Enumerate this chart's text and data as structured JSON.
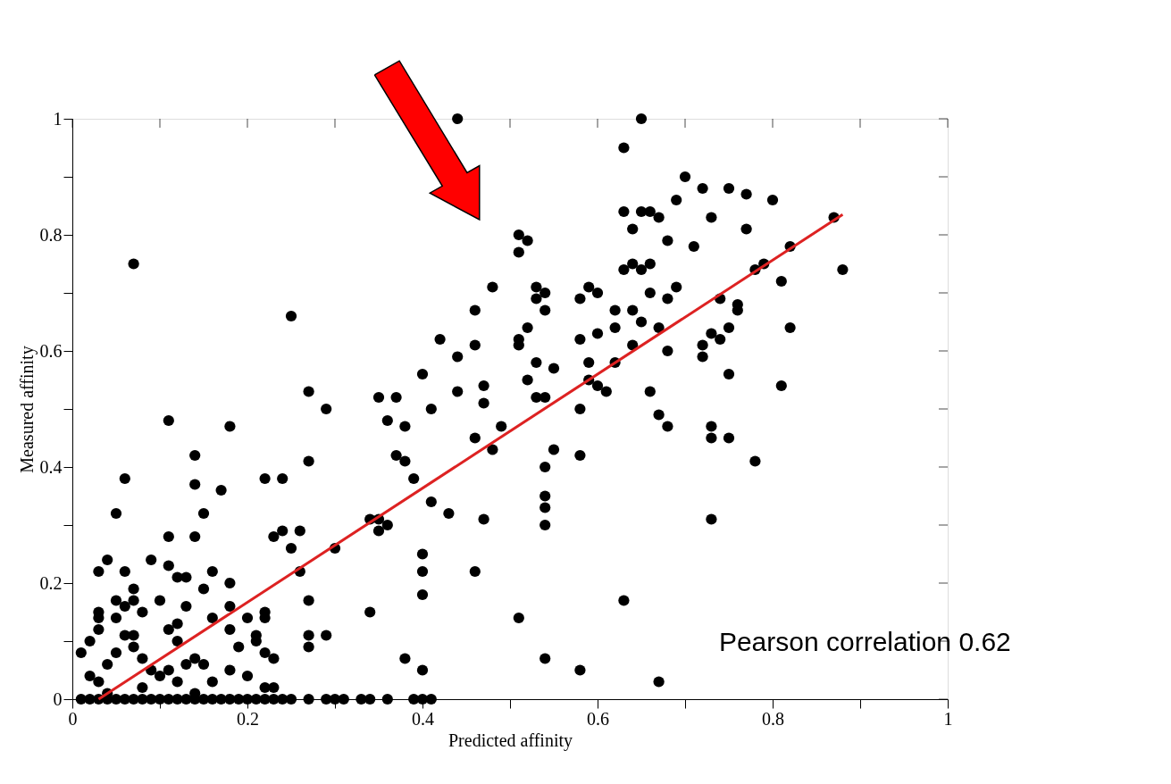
{
  "chart_data": {
    "type": "scatter",
    "xlabel": "Predicted affinity",
    "ylabel": "Measured affinity",
    "xlim": [
      0,
      1
    ],
    "ylim": [
      0,
      1
    ],
    "xticks": [
      0,
      {
        "value": 0.1,
        "label": null
      },
      0.2,
      {
        "value": 0.3,
        "label": null
      },
      0.4,
      {
        "value": 0.5,
        "label": null
      },
      0.6,
      {
        "value": 0.7,
        "label": null
      },
      0.8,
      {
        "value": 0.9,
        "label": null
      },
      1
    ],
    "yticks": [
      0,
      {
        "value": 0.1,
        "label": null
      },
      0.2,
      {
        "value": 0.3,
        "label": null
      },
      0.4,
      {
        "value": 0.5,
        "label": null
      },
      0.6,
      {
        "value": 0.7,
        "label": null
      },
      0.8,
      {
        "value": 0.9,
        "label": null
      },
      1
    ],
    "grid": false,
    "marker": "circle",
    "annotations": [
      "Pearson correlation 0.62"
    ],
    "series": [
      {
        "type": "scatter",
        "color": "#000000",
        "x": [
          0.44,
          0.65,
          0.63,
          0.7,
          0.72,
          0.75,
          0.77,
          0.8,
          0.69,
          0.73,
          0.63,
          0.65,
          0.66,
          0.67,
          0.87,
          0.64,
          0.77,
          0.68,
          0.71,
          0.82,
          0.51,
          0.52,
          0.51,
          0.63,
          0.65,
          0.66,
          0.64,
          0.79,
          0.78,
          0.88,
          0.81,
          0.59,
          0.48,
          0.53,
          0.54,
          0.58,
          0.6,
          0.69,
          0.74,
          0.68,
          0.76,
          0.53,
          0.46,
          0.54,
          0.66,
          0.62,
          0.64,
          0.65,
          0.67,
          0.75,
          0.73,
          0.74,
          0.82,
          0.51,
          0.51,
          0.52,
          0.58,
          0.6,
          0.62,
          0.42,
          0.46,
          0.72,
          0.72,
          0.76,
          0.62,
          0.64,
          0.68,
          0.53,
          0.55,
          0.59,
          0.44,
          0.52,
          0.59,
          0.6,
          0.61,
          0.75,
          0.81,
          0.53,
          0.54,
          0.47,
          0.47,
          0.4,
          0.41,
          0.44,
          0.35,
          0.37,
          0.36,
          0.38,
          0.46,
          0.49,
          0.58,
          0.66,
          0.67,
          0.68,
          0.73,
          0.73,
          0.75,
          0.78,
          0.48,
          0.55,
          0.58,
          0.37,
          0.38,
          0.39,
          0.54,
          0.54,
          0.54,
          0.41,
          0.43,
          0.47,
          0.54,
          0.73,
          0.35,
          0.36,
          0.35,
          0.34,
          0.4,
          0.4,
          0.46,
          0.4,
          0.34,
          0.51,
          0.63,
          0.38,
          0.4,
          0.54,
          0.58,
          0.67,
          0.07,
          0.25,
          0.06,
          0.11,
          0.18,
          0.14,
          0.27,
          0.24,
          0.22,
          0.27,
          0.29,
          0.14,
          0.17,
          0.15,
          0.05,
          0.14,
          0.11,
          0.24,
          0.26,
          0.23,
          0.3,
          0.25,
          0.04,
          0.06,
          0.09,
          0.03,
          0.11,
          0.12,
          0.13,
          0.16,
          0.15,
          0.18,
          0.26,
          0.22,
          0.2,
          0.21,
          0.18,
          0.07,
          0.05,
          0.07,
          0.06,
          0.1,
          0.08,
          0.03,
          0.03,
          0.03,
          0.05,
          0.06,
          0.02,
          0.01,
          0.04,
          0.05,
          0.07,
          0.08,
          0.07,
          0.11,
          0.12,
          0.13,
          0.16,
          0.12,
          0.13,
          0.14,
          0.11,
          0.15,
          0.18,
          0.18,
          0.21,
          0.19,
          0.2,
          0.22,
          0.23,
          0.22,
          0.27,
          0.27,
          0.27,
          0.29,
          0.23,
          0.02,
          0.03,
          0.04,
          0.09,
          0.08,
          0.1,
          0.12,
          0.14,
          0.16,
          0.22,
          0.01,
          0.02,
          0.03,
          0.04,
          0.05,
          0.06,
          0.07,
          0.08,
          0.09,
          0.1,
          0.11,
          0.12,
          0.13,
          0.14,
          0.15,
          0.16,
          0.17,
          0.18,
          0.19,
          0.2,
          0.21,
          0.22,
          0.23,
          0.24,
          0.25,
          0.27,
          0.29,
          0.3,
          0.31,
          0.33,
          0.34,
          0.36,
          0.39,
          0.4,
          0.41
        ],
        "values": [
          1.0,
          1.0,
          0.95,
          0.9,
          0.88,
          0.88,
          0.87,
          0.86,
          0.86,
          0.83,
          0.84,
          0.84,
          0.84,
          0.83,
          0.83,
          0.81,
          0.81,
          0.79,
          0.78,
          0.78,
          0.8,
          0.79,
          0.77,
          0.74,
          0.74,
          0.75,
          0.75,
          0.75,
          0.74,
          0.74,
          0.72,
          0.71,
          0.71,
          0.71,
          0.7,
          0.69,
          0.7,
          0.71,
          0.69,
          0.69,
          0.68,
          0.69,
          0.67,
          0.67,
          0.7,
          0.67,
          0.67,
          0.65,
          0.64,
          0.64,
          0.63,
          0.62,
          0.64,
          0.62,
          0.61,
          0.64,
          0.62,
          0.63,
          0.64,
          0.62,
          0.61,
          0.61,
          0.59,
          0.67,
          0.58,
          0.61,
          0.6,
          0.58,
          0.57,
          0.58,
          0.59,
          0.55,
          0.55,
          0.54,
          0.53,
          0.56,
          0.54,
          0.52,
          0.52,
          0.54,
          0.51,
          0.56,
          0.5,
          0.53,
          0.52,
          0.52,
          0.48,
          0.47,
          0.45,
          0.47,
          0.5,
          0.53,
          0.49,
          0.47,
          0.47,
          0.45,
          0.45,
          0.41,
          0.43,
          0.43,
          0.42,
          0.42,
          0.41,
          0.38,
          0.4,
          0.35,
          0.33,
          0.34,
          0.32,
          0.31,
          0.3,
          0.31,
          0.31,
          0.3,
          0.29,
          0.31,
          0.25,
          0.22,
          0.22,
          0.18,
          0.15,
          0.14,
          0.17,
          0.07,
          0.05,
          0.07,
          0.05,
          0.03,
          0.75,
          0.66,
          0.38,
          0.48,
          0.47,
          0.42,
          0.41,
          0.38,
          0.38,
          0.53,
          0.5,
          0.37,
          0.36,
          0.32,
          0.32,
          0.28,
          0.28,
          0.29,
          0.29,
          0.28,
          0.26,
          0.26,
          0.24,
          0.22,
          0.24,
          0.22,
          0.23,
          0.21,
          0.21,
          0.22,
          0.19,
          0.2,
          0.22,
          0.15,
          0.14,
          0.11,
          0.16,
          0.17,
          0.17,
          0.19,
          0.16,
          0.17,
          0.15,
          0.15,
          0.14,
          0.12,
          0.14,
          0.11,
          0.1,
          0.08,
          0.06,
          0.08,
          0.11,
          0.07,
          0.09,
          0.12,
          0.13,
          0.16,
          0.14,
          0.1,
          0.06,
          0.07,
          0.05,
          0.06,
          0.05,
          0.12,
          0.1,
          0.09,
          0.04,
          0.08,
          0.07,
          0.14,
          0.17,
          0.11,
          0.09,
          0.11,
          0.02,
          0.04,
          0.03,
          0.01,
          0.05,
          0.02,
          0.04,
          0.03,
          0.01,
          0.03,
          0.02,
          0,
          0,
          0,
          0,
          0,
          0,
          0,
          0,
          0,
          0,
          0,
          0,
          0,
          0,
          0,
          0,
          0,
          0,
          0,
          0,
          0,
          0,
          0,
          0,
          0,
          0,
          0,
          0,
          0,
          0,
          0,
          0,
          0,
          0,
          0
        ]
      },
      {
        "type": "line",
        "color": "#dd2222",
        "x": [
          0.03,
          0.88
        ],
        "values": [
          0,
          0.835
        ],
        "marker": "none"
      }
    ]
  }
}
